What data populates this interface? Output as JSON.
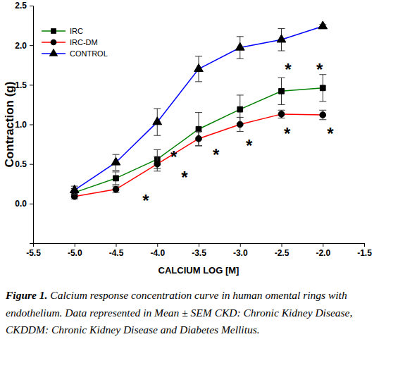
{
  "chart_data": {
    "type": "line",
    "xlabel": "CALCIUM LOG [M]",
    "ylabel": "Contraction (g)",
    "caption_label": "Figure 1.",
    "caption": "Calcium response concentration curve in human omental rings with endothelium. Data represented in Mean ± SEM CKD: Chronic Kidney Disease, CKDDM: Chronic Kidney Disease and Diabetes Mellitus.",
    "x": [
      -5.0,
      -4.5,
      -4.0,
      -3.5,
      -3.0,
      -2.5,
      -2.0
    ],
    "xlim": [
      -5.5,
      -1.5
    ],
    "xticks": [
      -5.5,
      {
        "value": -5,
        "label": "-5.0"
      },
      -4.5,
      {
        "value": -4,
        "label": "-4.0"
      },
      -3.5,
      {
        "value": -3,
        "label": "-3.0"
      },
      -2.5,
      {
        "value": -2,
        "label": "-2.0"
      },
      -1.5
    ],
    "ylim": [
      -0.5,
      2.5
    ],
    "yticks": [
      {
        "value": 0,
        "label": "0.0"
      },
      0.5,
      {
        "value": 1,
        "label": "1.0"
      },
      1.5,
      {
        "value": 2,
        "label": "2.0"
      },
      2.5
    ],
    "legend": "top-left",
    "series": [
      {
        "name": "IRC",
        "color": "#008000",
        "marker": "square",
        "values": [
          0.14,
          0.32,
          0.56,
          0.94,
          1.19,
          1.42,
          1.46
        ],
        "errors": [
          0.05,
          0.08,
          0.12,
          0.21,
          0.18,
          0.17,
          0.17
        ]
      },
      {
        "name": "IRC-DM",
        "color": "#ff0000",
        "marker": "circle",
        "values": [
          0.09,
          0.18,
          0.5,
          0.82,
          1.0,
          1.13,
          1.12
        ],
        "errors": [
          0.03,
          0.04,
          0.09,
          0.09,
          0.09,
          0.05,
          0.06
        ]
      },
      {
        "name": "CONTROL",
        "color": "#0000ff",
        "marker": "triangle",
        "values": [
          0.17,
          0.52,
          1.03,
          1.7,
          1.97,
          2.07,
          2.24
        ],
        "errors": [
          0.05,
          0.1,
          0.17,
          0.16,
          0.14,
          0.14,
          0.02
        ]
      }
    ],
    "annotations": [
      {
        "text": "*",
        "x": -4.14,
        "y": 0.05
      },
      {
        "text": "*",
        "x": -3.8,
        "y": 0.6
      },
      {
        "text": "*",
        "x": -3.67,
        "y": 0.35
      },
      {
        "text": "*",
        "x": -3.29,
        "y": 0.63
      },
      {
        "text": "*",
        "x": -2.89,
        "y": 0.75
      },
      {
        "text": "*",
        "x": -2.43,
        "y": 0.9
      },
      {
        "text": "*",
        "x": -1.91,
        "y": 0.9
      },
      {
        "text": "*",
        "x": -2.42,
        "y": 1.71
      },
      {
        "text": "*",
        "x": -2.04,
        "y": 1.71
      }
    ]
  }
}
